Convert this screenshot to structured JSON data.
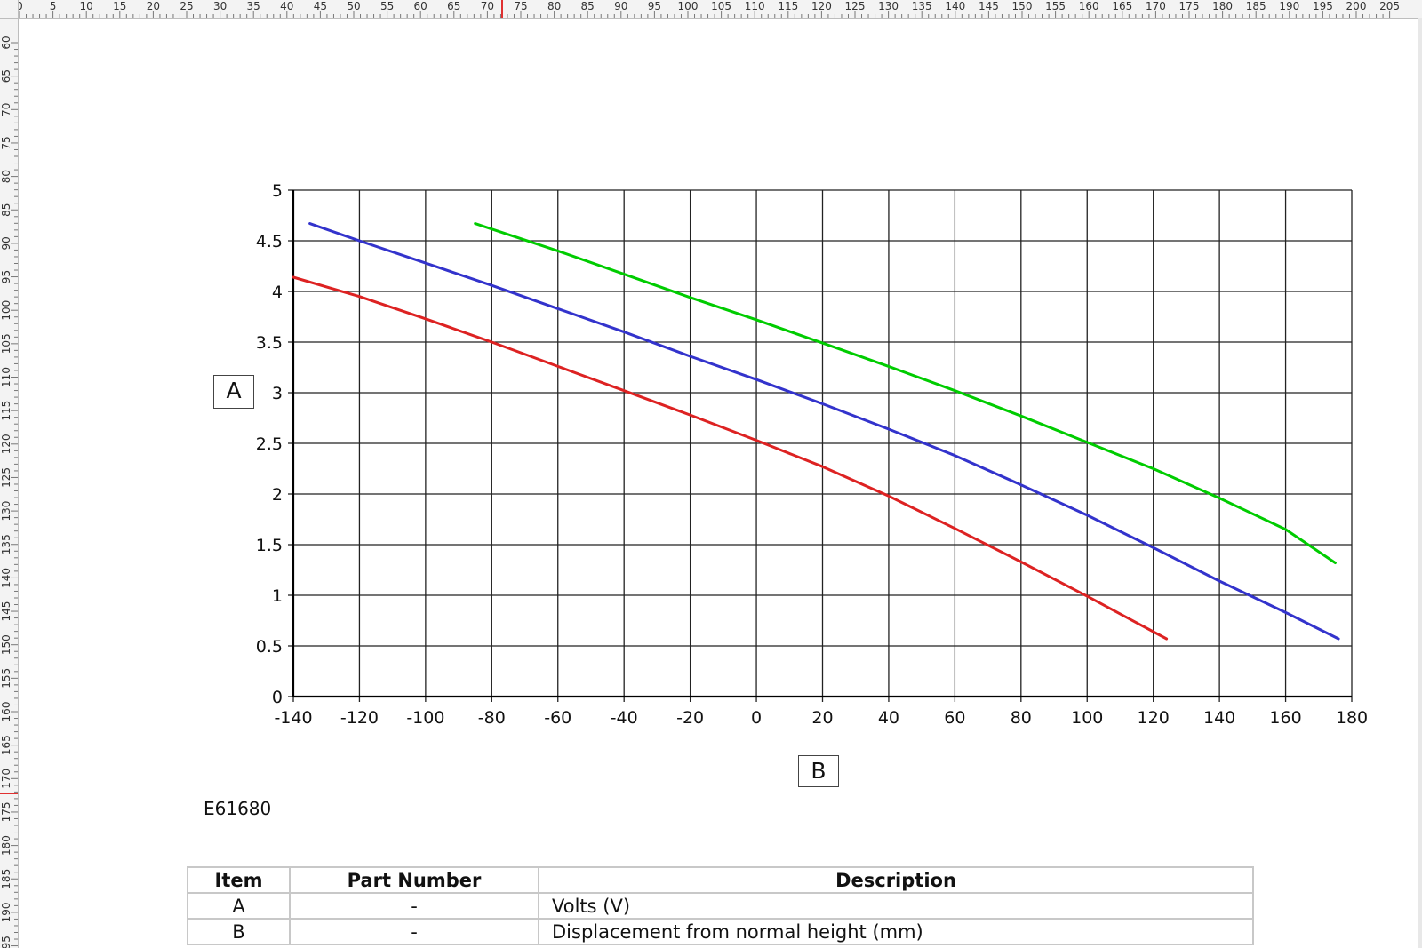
{
  "ruler": {
    "top": {
      "start": 0,
      "end": 205,
      "step": 5
    },
    "left": {
      "start": 60,
      "end": 195,
      "step": 5
    }
  },
  "chart_data": {
    "type": "line",
    "title": "",
    "xlabel": "B",
    "ylabel": "A",
    "xlim": [
      -140,
      180
    ],
    "ylim": [
      0,
      5
    ],
    "xticks": [
      -140,
      -120,
      -100,
      -80,
      -60,
      -40,
      -20,
      0,
      20,
      40,
      60,
      80,
      100,
      120,
      140,
      160,
      180
    ],
    "yticks": [
      0,
      0.5,
      1,
      1.5,
      2,
      2.5,
      3,
      3.5,
      4,
      4.5,
      5
    ],
    "grid": true,
    "series": [
      {
        "color": "#00cc00",
        "x": [
          -85,
          -60,
          -40,
          -20,
          0,
          20,
          40,
          60,
          80,
          100,
          120,
          140,
          160,
          175
        ],
        "y": [
          4.67,
          4.4,
          4.17,
          3.94,
          3.72,
          3.49,
          3.26,
          3.02,
          2.77,
          2.51,
          2.25,
          1.96,
          1.65,
          1.32
        ]
      },
      {
        "color": "#3333cc",
        "x": [
          -135,
          -120,
          -100,
          -80,
          -60,
          -40,
          -20,
          0,
          20,
          40,
          60,
          80,
          100,
          120,
          140,
          160,
          176
        ],
        "y": [
          4.67,
          4.5,
          4.28,
          4.06,
          3.83,
          3.6,
          3.36,
          3.13,
          2.89,
          2.64,
          2.38,
          2.09,
          1.79,
          1.47,
          1.14,
          0.83,
          0.57
        ]
      },
      {
        "color": "#dd2222",
        "x": [
          -140,
          -120,
          -100,
          -80,
          -60,
          -40,
          -20,
          0,
          20,
          40,
          60,
          80,
          100,
          124
        ],
        "y": [
          4.14,
          3.95,
          3.73,
          3.5,
          3.26,
          3.02,
          2.78,
          2.53,
          2.27,
          1.98,
          1.66,
          1.33,
          0.99,
          0.57
        ]
      }
    ]
  },
  "labels": {
    "a": "A",
    "b": "B"
  },
  "figure_id": "E61680",
  "table": {
    "headers": {
      "item": "Item",
      "part": "Part Number",
      "desc": "Description"
    },
    "rows": [
      {
        "item": "A",
        "part": "-",
        "desc": "Volts (V)"
      },
      {
        "item": "B",
        "part": "-",
        "desc": "Displacement from normal height (mm)"
      }
    ]
  }
}
